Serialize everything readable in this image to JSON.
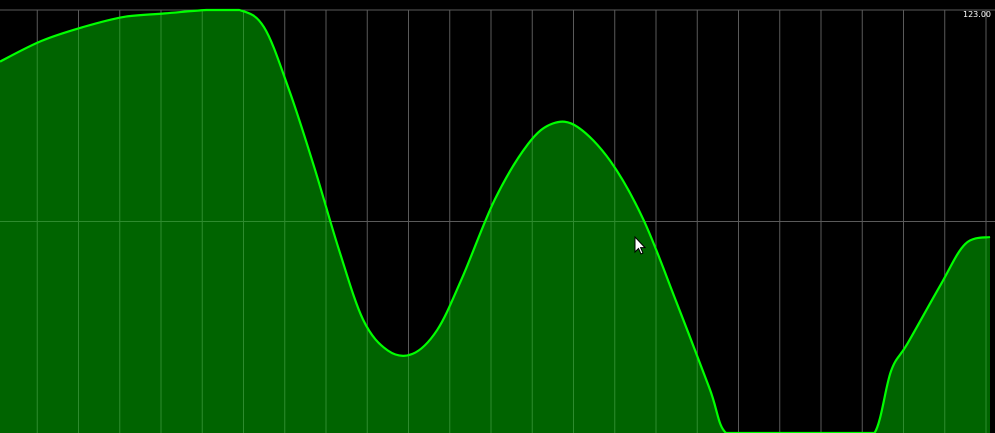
{
  "chart_data": {
    "type": "area",
    "title": "",
    "xlabel": "",
    "ylabel": "",
    "scale_label": "123.00",
    "ylim": [
      0,
      123
    ],
    "xlim": [
      0,
      24
    ],
    "grid": true,
    "vertical_gridlines": 24,
    "horizontal_gridlines": [
      61.5,
      123
    ],
    "colors": {
      "background": "#000000",
      "fill": "#006400",
      "line": "#00ff00",
      "grid": "#5a5a5a",
      "grid_on_fill": "#2e8b2e"
    },
    "x": [
      0,
      1,
      2,
      3,
      4,
      5,
      5.8,
      6.4,
      7,
      7.6,
      8.2,
      8.8,
      9.4,
      10,
      10.6,
      11.2,
      12,
      12.8,
      13.4,
      14,
      14.8,
      15.6,
      16.4,
      17.2,
      17.6,
      18.4,
      19.2,
      20,
      20.6,
      21.2,
      21.6,
      22,
      22.8,
      23.4,
      24
    ],
    "values": [
      108,
      114,
      118,
      121,
      122,
      123,
      123,
      118,
      100,
      78,
      54,
      33,
      24,
      23,
      30,
      45,
      68,
      84,
      90,
      89,
      79,
      62,
      38,
      13,
      0,
      0,
      0,
      0,
      0,
      0,
      18,
      26,
      43,
      55,
      57
    ]
  },
  "cursor": {
    "icon": "arrow-cursor-icon"
  }
}
